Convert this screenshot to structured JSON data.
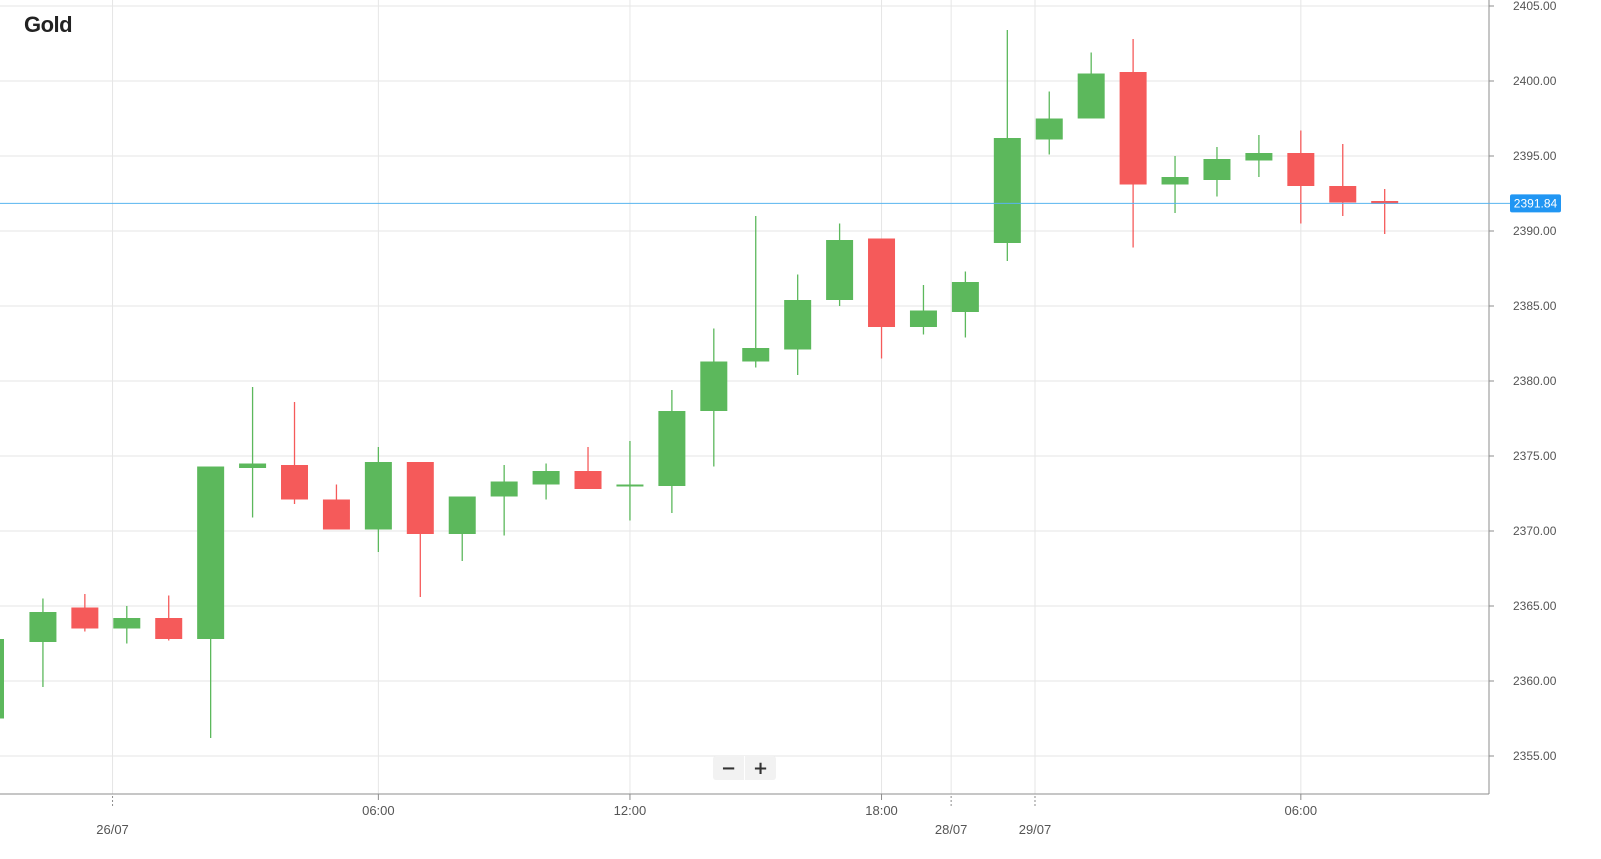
{
  "title": "Gold",
  "controls": {
    "zoom_out": "−",
    "zoom_in": "+"
  },
  "colors": {
    "up": "#5cb85c",
    "down": "#f55a5a",
    "current_line": "#58b4ef",
    "price_tag_bg": "#2196f3",
    "grid": "#e6e6e6",
    "axis": "#8c8c8c",
    "text": "#555555"
  },
  "chart_data": {
    "type": "candlestick",
    "title": "Gold",
    "xlabel": "",
    "ylabel": "",
    "ylim": [
      2352.5,
      2405
    ],
    "y_ticks": [
      "2355.00",
      "2360.00",
      "2365.00",
      "2370.00",
      "2375.00",
      "2380.00",
      "2385.00",
      "2390.00",
      "2395.00",
      "2400.00",
      "2405.00"
    ],
    "x_ticks": [
      {
        "index": 2.66,
        "label": "26/07",
        "day_boundary": true
      },
      {
        "index": 9.0,
        "label": "06:00",
        "day_boundary": false
      },
      {
        "index": 15.0,
        "label": "12:00",
        "day_boundary": false
      },
      {
        "index": 21.0,
        "label": "18:00",
        "day_boundary": false
      },
      {
        "index": 22.66,
        "label": "28/07",
        "day_boundary": true
      },
      {
        "index": 24.66,
        "label": "29/07",
        "day_boundary": true
      },
      {
        "index": 31.0,
        "label": "06:00",
        "day_boundary": false
      }
    ],
    "current_price": 2391.84,
    "current_price_label": "2391.84",
    "grid": true,
    "candles": [
      {
        "open": 2357.5,
        "high": 2362.8,
        "low": 2357.5,
        "close": 2362.8,
        "partial": true
      },
      {
        "open": 2362.6,
        "high": 2365.5,
        "low": 2359.6,
        "close": 2364.6
      },
      {
        "open": 2364.9,
        "high": 2365.8,
        "low": 2363.3,
        "close": 2363.5
      },
      {
        "open": 2363.5,
        "high": 2365.0,
        "low": 2362.5,
        "close": 2364.2
      },
      {
        "open": 2364.2,
        "high": 2365.7,
        "low": 2362.7,
        "close": 2362.8
      },
      {
        "open": 2362.8,
        "high": 2374.3,
        "low": 2356.2,
        "close": 2374.3
      },
      {
        "open": 2374.2,
        "high": 2379.6,
        "low": 2370.9,
        "close": 2374.5
      },
      {
        "open": 2374.4,
        "high": 2378.6,
        "low": 2371.8,
        "close": 2372.1
      },
      {
        "open": 2372.1,
        "high": 2373.1,
        "low": 2370.1,
        "close": 2370.1
      },
      {
        "open": 2370.1,
        "high": 2375.6,
        "low": 2368.6,
        "close": 2374.6
      },
      {
        "open": 2374.6,
        "high": 2374.6,
        "low": 2365.6,
        "close": 2369.8
      },
      {
        "open": 2369.8,
        "high": 2372.3,
        "low": 2368.0,
        "close": 2372.3
      },
      {
        "open": 2372.3,
        "high": 2374.4,
        "low": 2369.7,
        "close": 2373.3
      },
      {
        "open": 2373.1,
        "high": 2374.5,
        "low": 2372.1,
        "close": 2374.0
      },
      {
        "open": 2374.0,
        "high": 2375.6,
        "low": 2372.8,
        "close": 2372.8
      },
      {
        "open": 2373.0,
        "high": 2376.0,
        "low": 2370.7,
        "close": 2373.1
      },
      {
        "open": 2373.0,
        "high": 2379.4,
        "low": 2371.2,
        "close": 2378.0
      },
      {
        "open": 2378.0,
        "high": 2383.5,
        "low": 2374.3,
        "close": 2381.3
      },
      {
        "open": 2381.3,
        "high": 2391.0,
        "low": 2380.9,
        "close": 2382.2
      },
      {
        "open": 2382.1,
        "high": 2387.1,
        "low": 2380.4,
        "close": 2385.4
      },
      {
        "open": 2385.4,
        "high": 2390.5,
        "low": 2385.0,
        "close": 2389.4
      },
      {
        "open": 2389.5,
        "high": 2389.5,
        "low": 2381.5,
        "close": 2383.6
      },
      {
        "open": 2383.6,
        "high": 2386.4,
        "low": 2383.1,
        "close": 2384.7
      },
      {
        "open": 2384.6,
        "high": 2387.3,
        "low": 2382.9,
        "close": 2386.6
      },
      {
        "open": 2389.2,
        "high": 2403.4,
        "low": 2388.0,
        "close": 2396.2
      },
      {
        "open": 2396.1,
        "high": 2399.3,
        "low": 2395.1,
        "close": 2397.5
      },
      {
        "open": 2397.5,
        "high": 2401.9,
        "low": 2397.5,
        "close": 2400.5
      },
      {
        "open": 2400.6,
        "high": 2402.8,
        "low": 2388.9,
        "close": 2393.1
      },
      {
        "open": 2393.1,
        "high": 2395.0,
        "low": 2391.2,
        "close": 2393.6
      },
      {
        "open": 2393.4,
        "high": 2395.6,
        "low": 2392.3,
        "close": 2394.8
      },
      {
        "open": 2394.7,
        "high": 2396.4,
        "low": 2393.6,
        "close": 2395.2
      },
      {
        "open": 2395.2,
        "high": 2396.7,
        "low": 2390.5,
        "close": 2393.0
      },
      {
        "open": 2393.0,
        "high": 2395.8,
        "low": 2391.0,
        "close": 2391.9
      },
      {
        "open": 2392.0,
        "high": 2392.8,
        "low": 2389.8,
        "close": 2391.8
      }
    ]
  }
}
